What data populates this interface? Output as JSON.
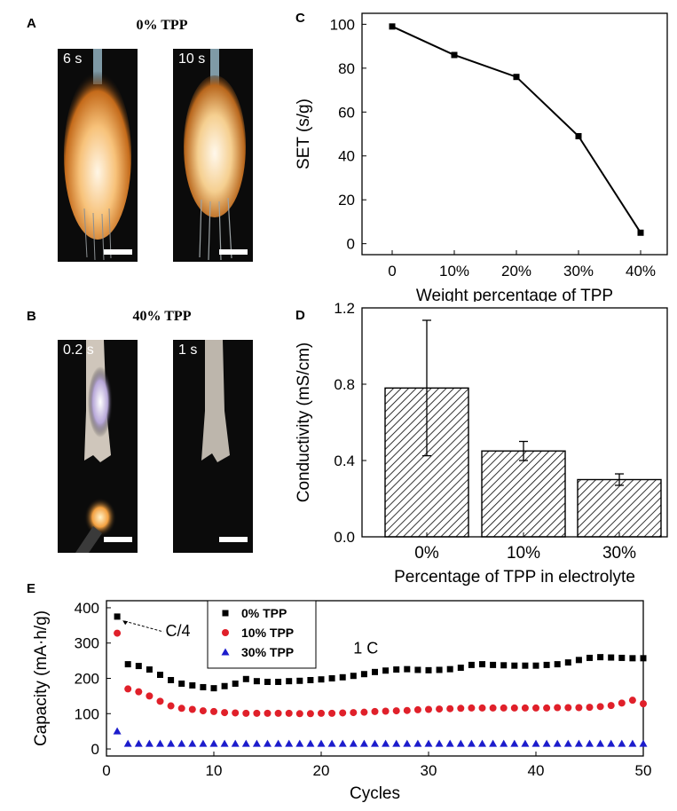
{
  "panels": {
    "A": {
      "letter": "A",
      "title": "0% TPP",
      "photos": [
        {
          "time": "6 s"
        },
        {
          "time": "10 s"
        }
      ]
    },
    "B": {
      "letter": "B",
      "title": "40% TPP",
      "photos": [
        {
          "time": "0.2 s"
        },
        {
          "time": "1 s"
        }
      ]
    },
    "C": {
      "letter": "C"
    },
    "D": {
      "letter": "D"
    },
    "E": {
      "letter": "E"
    }
  },
  "chart_data": [
    {
      "panel": "C",
      "type": "line",
      "categories": [
        "0",
        "10%",
        "20%",
        "30%",
        "40%"
      ],
      "values": [
        99,
        86,
        76,
        49,
        5
      ],
      "xlabel": "Weight percentage of TPP",
      "ylabel": "SET (s/g)",
      "ylim": [
        -5,
        105
      ],
      "yticks": [
        0,
        20,
        40,
        60,
        80,
        100
      ],
      "color": "#000000"
    },
    {
      "panel": "D",
      "type": "bar",
      "categories": [
        "0%",
        "10%",
        "30%"
      ],
      "values": [
        0.78,
        0.45,
        0.3
      ],
      "errors": [
        0.355,
        0.05,
        0.03
      ],
      "xlabel": "Percentage of TPP in electrolyte",
      "ylabel": "Conductivity (mS/cm)",
      "ylim": [
        0,
        1.2
      ],
      "yticks": [
        "0.0",
        "0.4",
        "0.8",
        "1.2"
      ],
      "pattern": "diagonal-hatch"
    },
    {
      "panel": "E",
      "type": "scatter",
      "xlabel": "Cycles",
      "ylabel": "Capacity (mA·h/g)",
      "xlim": [
        0,
        50
      ],
      "ylim": [
        -20,
        420
      ],
      "xticks": [
        0,
        10,
        20,
        30,
        40,
        50
      ],
      "yticks": [
        0,
        100,
        200,
        300,
        400
      ],
      "legend_position": "top-center",
      "annotations": [
        {
          "text": "C/4",
          "x": 5.5,
          "y": 335
        },
        {
          "text": "1 C",
          "x": 23,
          "y": 285
        }
      ],
      "series": [
        {
          "name": "0% TPP",
          "marker": "square",
          "color": "#000000",
          "x": [
            1,
            2,
            3,
            4,
            5,
            6,
            7,
            8,
            9,
            10,
            11,
            12,
            13,
            14,
            15,
            16,
            17,
            18,
            19,
            20,
            21,
            22,
            23,
            24,
            25,
            26,
            27,
            28,
            29,
            30,
            31,
            32,
            33,
            34,
            35,
            36,
            37,
            38,
            39,
            40,
            41,
            42,
            43,
            44,
            45,
            46,
            47,
            48,
            49,
            50
          ],
          "values": [
            375,
            240,
            235,
            225,
            210,
            195,
            185,
            180,
            175,
            172,
            178,
            185,
            198,
            192,
            190,
            190,
            192,
            193,
            195,
            197,
            200,
            203,
            207,
            212,
            218,
            222,
            225,
            226,
            224,
            223,
            224,
            226,
            230,
            238,
            240,
            238,
            237,
            236,
            236,
            236,
            238,
            240,
            245,
            252,
            258,
            260,
            259,
            258,
            257,
            257
          ]
        },
        {
          "name": "10% TPP",
          "marker": "circle",
          "color": "#e0202a",
          "x": [
            1,
            2,
            3,
            4,
            5,
            6,
            7,
            8,
            9,
            10,
            11,
            12,
            13,
            14,
            15,
            16,
            17,
            18,
            19,
            20,
            21,
            22,
            23,
            24,
            25,
            26,
            27,
            28,
            29,
            30,
            31,
            32,
            33,
            34,
            35,
            36,
            37,
            38,
            39,
            40,
            41,
            42,
            43,
            44,
            45,
            46,
            47,
            48,
            49,
            50
          ],
          "values": [
            328,
            170,
            162,
            150,
            135,
            122,
            115,
            112,
            108,
            106,
            103,
            102,
            101,
            101,
            101,
            101,
            101,
            100,
            100,
            101,
            101,
            102,
            103,
            104,
            106,
            107,
            108,
            109,
            111,
            112,
            113,
            114,
            115,
            116,
            116,
            116,
            116,
            116,
            116,
            116,
            116,
            117,
            117,
            117,
            118,
            120,
            123,
            130,
            138,
            128
          ]
        },
        {
          "name": "30% TPP",
          "marker": "triangle",
          "color": "#1c1ccc",
          "x": [
            1,
            2,
            3,
            4,
            5,
            6,
            7,
            8,
            9,
            10,
            11,
            12,
            13,
            14,
            15,
            16,
            17,
            18,
            19,
            20,
            21,
            22,
            23,
            24,
            25,
            26,
            27,
            28,
            29,
            30,
            31,
            32,
            33,
            34,
            35,
            36,
            37,
            38,
            39,
            40,
            41,
            42,
            43,
            44,
            45,
            46,
            47,
            48,
            49,
            50
          ],
          "values": [
            50,
            15,
            15,
            15,
            15,
            15,
            15,
            15,
            15,
            15,
            15,
            15,
            15,
            15,
            15,
            15,
            15,
            15,
            15,
            15,
            15,
            15,
            15,
            15,
            15,
            15,
            15,
            15,
            15,
            15,
            15,
            15,
            15,
            15,
            15,
            15,
            15,
            15,
            15,
            15,
            15,
            15,
            15,
            15,
            15,
            15,
            15,
            15,
            15,
            15
          ]
        }
      ]
    }
  ]
}
